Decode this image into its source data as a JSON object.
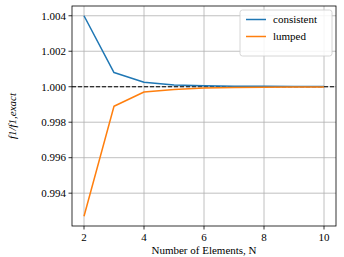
{
  "chart_data": {
    "type": "line",
    "xlabel": "Number of Elements, N",
    "ylabel": "f1/f1,exact",
    "x": [
      2,
      3,
      4,
      5,
      6,
      7,
      8,
      9,
      10
    ],
    "series": [
      {
        "name": "consistent",
        "color": "#1f77b4",
        "values": [
          1.004,
          1.0008,
          1.00025,
          1.0001,
          1.00005,
          1.00003,
          1.00002,
          1.00001,
          1.00001
        ]
      },
      {
        "name": "lumped",
        "color": "#ff7f0e",
        "values": [
          0.9927,
          0.9989,
          0.9997,
          0.99985,
          0.99993,
          0.99996,
          0.99997,
          0.99998,
          0.99999
        ]
      }
    ],
    "hline": 1,
    "xlim": [
      1.6,
      10.4
    ],
    "ylim": [
      0.99215,
      1.00455
    ],
    "xticks": [
      2,
      4,
      6,
      8,
      10
    ],
    "yticks": [
      0.994,
      0.996,
      0.998,
      {
        "value": 1,
        "label": "1.000"
      },
      1.002,
      1.004
    ],
    "grid": true,
    "legend": "upper right"
  }
}
